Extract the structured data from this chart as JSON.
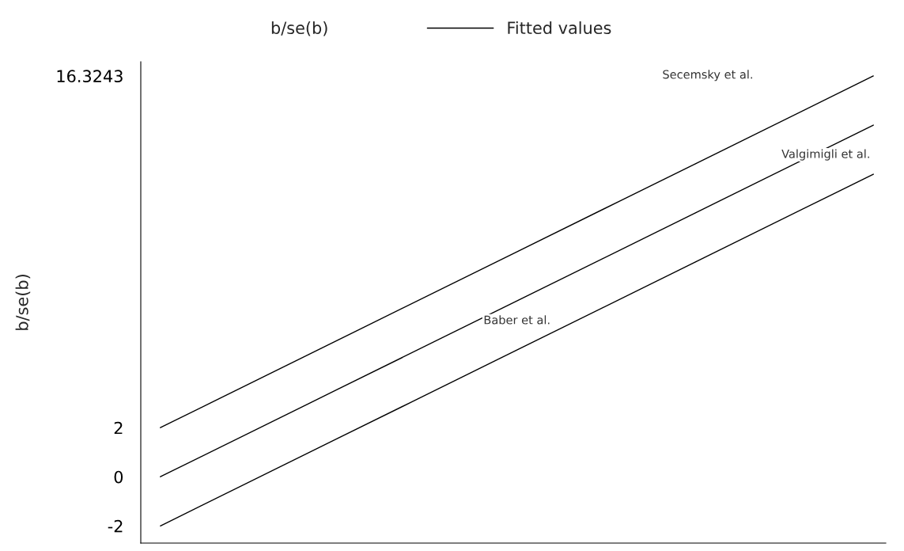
{
  "chart_data": {
    "type": "line",
    "categories": [
      null,
      null,
      null,
      null,
      null
    ],
    "ylabel": "b/se(b)",
    "series": [
      {
        "name": "b/se(b)",
        "type": "scatter",
        "marker": "none",
        "values": [
          null,
          null,
          null,
          null,
          null
        ]
      },
      {
        "name": "Fitted values",
        "color": "#000000",
        "values": [
          0,
          3.58,
          7.16,
          10.74,
          14.32
        ]
      },
      {
        "color": "#000000",
        "values": [
          2,
          5.58,
          9.16,
          12.74,
          16.32
        ]
      },
      {
        "color": "#000000",
        "values": [
          -2,
          1.58,
          5.16,
          8.74,
          12.32
        ]
      }
    ],
    "ylim": [
      -2.7,
      16.9
    ],
    "yticks": [
      -2,
      0,
      2,
      16.3243
    ],
    "tick_labels": "y",
    "grid": false,
    "legend": "top",
    "annotations": [
      "Secemsky et al.",
      "Valgimigli et al.",
      "Baber et al."
    ]
  }
}
